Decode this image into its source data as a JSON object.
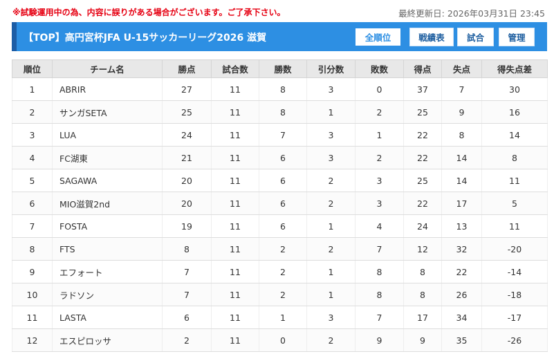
{
  "header": {
    "notice": "※試験運用中の為、内容に誤りがある場合がございます。ご了承下さい。",
    "updated_label": "最終更新日:",
    "updated_value": "2026年03月31日 23:45"
  },
  "titlebar": {
    "title": "【TOP】高円宮杯JFA U-15サッカーリーグ2026 滋賀",
    "buttons": [
      "全順位",
      "戦績表",
      "試合",
      "管理"
    ],
    "active_button": "全順位"
  },
  "table": {
    "columns": [
      "順位",
      "チーム名",
      "勝点",
      "試合数",
      "勝数",
      "引分数",
      "敗数",
      "得点",
      "失点",
      "得失点差"
    ],
    "rows": [
      [
        "1",
        "ABRIR",
        "27",
        "11",
        "8",
        "3",
        "0",
        "37",
        "7",
        "30"
      ],
      [
        "2",
        "サンガSETA",
        "25",
        "11",
        "8",
        "1",
        "2",
        "25",
        "9",
        "16"
      ],
      [
        "3",
        "LUA",
        "24",
        "11",
        "7",
        "3",
        "1",
        "22",
        "8",
        "14"
      ],
      [
        "4",
        "FC湖東",
        "21",
        "11",
        "6",
        "3",
        "2",
        "22",
        "14",
        "8"
      ],
      [
        "5",
        "SAGAWA",
        "20",
        "11",
        "6",
        "2",
        "3",
        "25",
        "14",
        "11"
      ],
      [
        "6",
        "MIO滋賀2nd",
        "20",
        "11",
        "6",
        "2",
        "3",
        "22",
        "17",
        "5"
      ],
      [
        "7",
        "FOSTA",
        "19",
        "11",
        "6",
        "1",
        "4",
        "24",
        "13",
        "11"
      ],
      [
        "8",
        "FTS",
        "8",
        "11",
        "2",
        "2",
        "7",
        "12",
        "32",
        "-20"
      ],
      [
        "9",
        "エフォート",
        "7",
        "11",
        "2",
        "1",
        "8",
        "8",
        "22",
        "-14"
      ],
      [
        "10",
        "ラドソン",
        "7",
        "11",
        "2",
        "1",
        "8",
        "8",
        "26",
        "-18"
      ],
      [
        "11",
        "LASTA",
        "6",
        "11",
        "1",
        "3",
        "7",
        "17",
        "34",
        "-17"
      ],
      [
        "12",
        "エスピロッサ",
        "2",
        "11",
        "0",
        "2",
        "9",
        "9",
        "35",
        "-26"
      ]
    ]
  },
  "colors": {
    "notice": "#e60012",
    "titlebar": "#2d8fe3",
    "titlebar_accent": "#1c5da6",
    "button_text": "#1f5fa0",
    "header_bg": "#e8e8e8"
  }
}
